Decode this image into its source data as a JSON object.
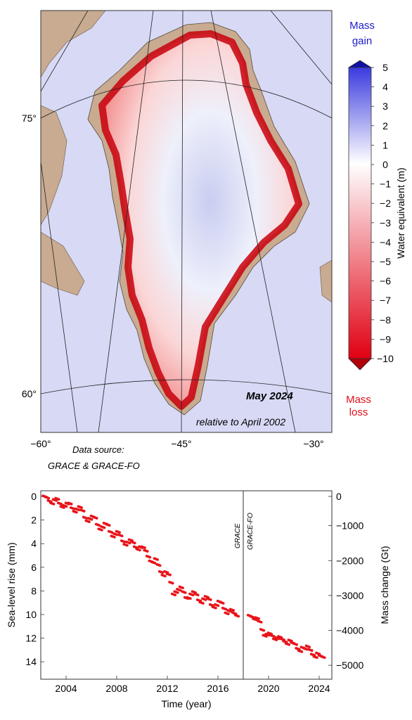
{
  "map": {
    "date_label": "May 2024",
    "reference_label": "relative to April 2002",
    "source_label_1": "Data source:",
    "source_label_2": "GRACE & GRACE-FO",
    "lat_labels": [
      "75°",
      "60°"
    ],
    "lon_labels": [
      "−60°",
      "−45°",
      "−30°"
    ],
    "colors": {
      "ocean": "#d7d9f5",
      "land": "#c8ab90",
      "loss": "#d4000d",
      "gain": "#1010a8"
    }
  },
  "colorbar": {
    "title": "Water equivalent (m)",
    "top_label_1": "Mass",
    "top_label_2": "gain",
    "bottom_label_1": "Mass",
    "bottom_label_2": "loss",
    "ticks": [
      "5",
      "4",
      "3",
      "2",
      "1",
      "0",
      "−1",
      "−2",
      "−3",
      "−4",
      "−5",
      "−6",
      "−7",
      "−8",
      "−9",
      "−10"
    ],
    "range": [
      -10,
      5
    ]
  },
  "timeseries": {
    "mission_1": "GRACE",
    "mission_2": "GRACE-FO",
    "xlabel": "Time (year)",
    "ylabel_left": "Sea-level rise (mm)",
    "ylabel_right": "Mass change (Gt)",
    "x_ticks": [
      "2004",
      "2008",
      "2012",
      "2016",
      "2020",
      "2024"
    ],
    "left_ticks": [
      "0",
      "2",
      "4",
      "6",
      "8",
      "10",
      "12",
      "14"
    ],
    "right_ticks": [
      "0",
      "−1000",
      "−2000",
      "−3000",
      "−4000",
      "−5000"
    ]
  },
  "chart_data": {
    "type": "scatter",
    "xlabel": "Time (year)",
    "ylabel": "Sea-level rise (mm)",
    "ylabel_right": "Mass change (Gt)",
    "xlim": [
      2002,
      2025
    ],
    "ylim": [
      0,
      15
    ],
    "y_inverted": true,
    "right_ylim": [
      0,
      -5400
    ],
    "point_color": "#e8141a",
    "mission_split_year": 2018,
    "series": [
      {
        "name": "GRACE",
        "x": [
          2002.3,
          2002.5,
          2002.7,
          2002.9,
          2003.1,
          2003.3,
          2003.5,
          2003.7,
          2003.9,
          2004.1,
          2004.3,
          2004.5,
          2004.7,
          2004.9,
          2005.1,
          2005.3,
          2005.5,
          2005.7,
          2005.9,
          2006.1,
          2006.3,
          2006.5,
          2006.7,
          2006.9,
          2007.1,
          2007.3,
          2007.5,
          2007.7,
          2007.9,
          2008.1,
          2008.3,
          2008.5,
          2008.7,
          2008.9,
          2009.1,
          2009.3,
          2009.5,
          2009.7,
          2009.9,
          2010.1,
          2010.3,
          2010.5,
          2010.7,
          2010.9,
          2011.1,
          2011.3,
          2011.5,
          2011.7,
          2011.9,
          2012.1,
          2012.3,
          2012.5,
          2012.7,
          2012.9,
          2013.1,
          2013.3,
          2013.5,
          2013.7,
          2013.9,
          2014.1,
          2014.3,
          2014.5,
          2014.7,
          2014.9,
          2015.1,
          2015.3,
          2015.5,
          2015.7,
          2015.9,
          2016.1,
          2016.3,
          2016.5,
          2016.7,
          2016.9,
          2017.1,
          2017.3,
          2017.5
        ],
        "y": [
          0.0,
          0.1,
          0.4,
          0.6,
          0.3,
          0.2,
          0.6,
          0.9,
          0.8,
          0.6,
          0.6,
          1.0,
          1.3,
          1.1,
          0.9,
          1.2,
          1.8,
          2.1,
          1.9,
          1.7,
          1.8,
          2.4,
          2.8,
          2.6,
          2.3,
          2.4,
          3.0,
          3.4,
          3.2,
          3.0,
          3.3,
          3.8,
          4.1,
          3.9,
          3.7,
          3.9,
          4.3,
          4.5,
          4.3,
          4.3,
          4.6,
          5.1,
          5.5,
          5.6,
          5.3,
          5.8,
          6.4,
          6.7,
          6.4,
          6.6,
          7.3,
          8.3,
          8.1,
          7.9,
          7.7,
          8.1,
          8.6,
          8.6,
          8.3,
          8.1,
          8.3,
          8.8,
          9.0,
          8.7,
          8.5,
          8.7,
          9.2,
          9.4,
          9.2,
          8.9,
          9.0,
          9.5,
          9.9,
          9.7,
          9.6,
          9.9,
          10.1
        ]
      },
      {
        "name": "GRACE-FO",
        "x": [
          2018.5,
          2018.7,
          2018.9,
          2019.1,
          2019.3,
          2019.5,
          2019.7,
          2019.9,
          2020.1,
          2020.3,
          2020.5,
          2020.7,
          2020.9,
          2021.1,
          2021.3,
          2021.5,
          2021.7,
          2021.9,
          2022.1,
          2022.3,
          2022.5,
          2022.7,
          2022.9,
          2023.1,
          2023.3,
          2023.5,
          2023.7,
          2023.9,
          2024.1,
          2024.3
        ],
        "y": [
          10.1,
          10.2,
          10.4,
          10.3,
          10.6,
          11.3,
          11.8,
          11.7,
          11.6,
          11.8,
          12.1,
          12.0,
          11.9,
          12.1,
          12.3,
          12.5,
          12.2,
          12.4,
          12.5,
          12.9,
          13.1,
          12.8,
          12.9,
          12.7,
          13.0,
          13.4,
          13.6,
          13.3,
          13.5,
          13.6
        ]
      }
    ]
  }
}
